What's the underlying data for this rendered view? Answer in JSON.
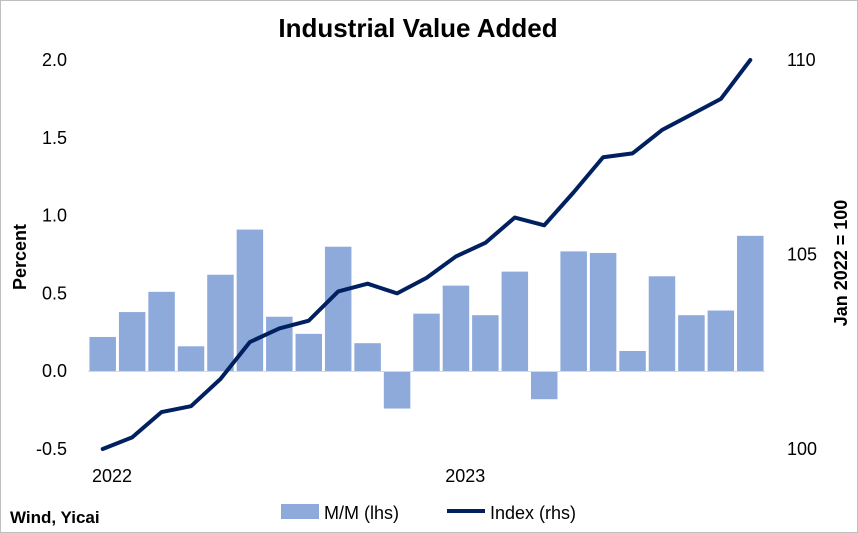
{
  "chart_data": {
    "type": "bar",
    "title": "Industrial Value Added",
    "ylabel": "Percent",
    "y2label": "Jan 2022 = 100",
    "ylim": [
      -0.5,
      2.0
    ],
    "y2lim": [
      100,
      110
    ],
    "yticks": [
      "-0.5",
      "0.0",
      "0.5",
      "1.0",
      "1.5",
      "2.0"
    ],
    "y2ticks": [
      "100",
      "105",
      "110"
    ],
    "xticks": [
      "2022",
      "2023"
    ],
    "legend_position": "bottom",
    "grid": false,
    "periods": [
      "2022-01",
      "2022-02",
      "2022-03",
      "2022-04",
      "2022-05",
      "2022-06",
      "2022-07",
      "2022-08",
      "2022-09",
      "2022-10",
      "2022-11",
      "2022-12",
      "2023-01",
      "2023-02",
      "2023-03",
      "2023-04",
      "2023-05",
      "2023-06",
      "2023-07",
      "2023-08",
      "2023-09",
      "2023-10",
      "2023-11"
    ],
    "series": [
      {
        "name": "M/M (lhs)",
        "type": "bar",
        "axis": "left",
        "color": "#8eaadb",
        "values": [
          0.22,
          0.38,
          0.51,
          0.16,
          0.62,
          0.91,
          0.35,
          0.24,
          0.8,
          0.18,
          -0.24,
          0.37,
          0.55,
          0.36,
          0.64,
          -0.18,
          0.77,
          0.76,
          0.13,
          0.61,
          0.36,
          0.39,
          0.87
        ]
      },
      {
        "name": "Index (rhs)",
        "type": "line",
        "axis": "right",
        "color": "#002060",
        "values": [
          99.8,
          100.3,
          100.95,
          101.1,
          101.8,
          102.75,
          103.1,
          103.3,
          104.05,
          104.25,
          104.0,
          104.4,
          104.95,
          105.3,
          105.95,
          105.75,
          106.6,
          107.5,
          107.6,
          108.2,
          108.6,
          109.0,
          110.0
        ]
      }
    ]
  },
  "source": "Wind, Yicai"
}
